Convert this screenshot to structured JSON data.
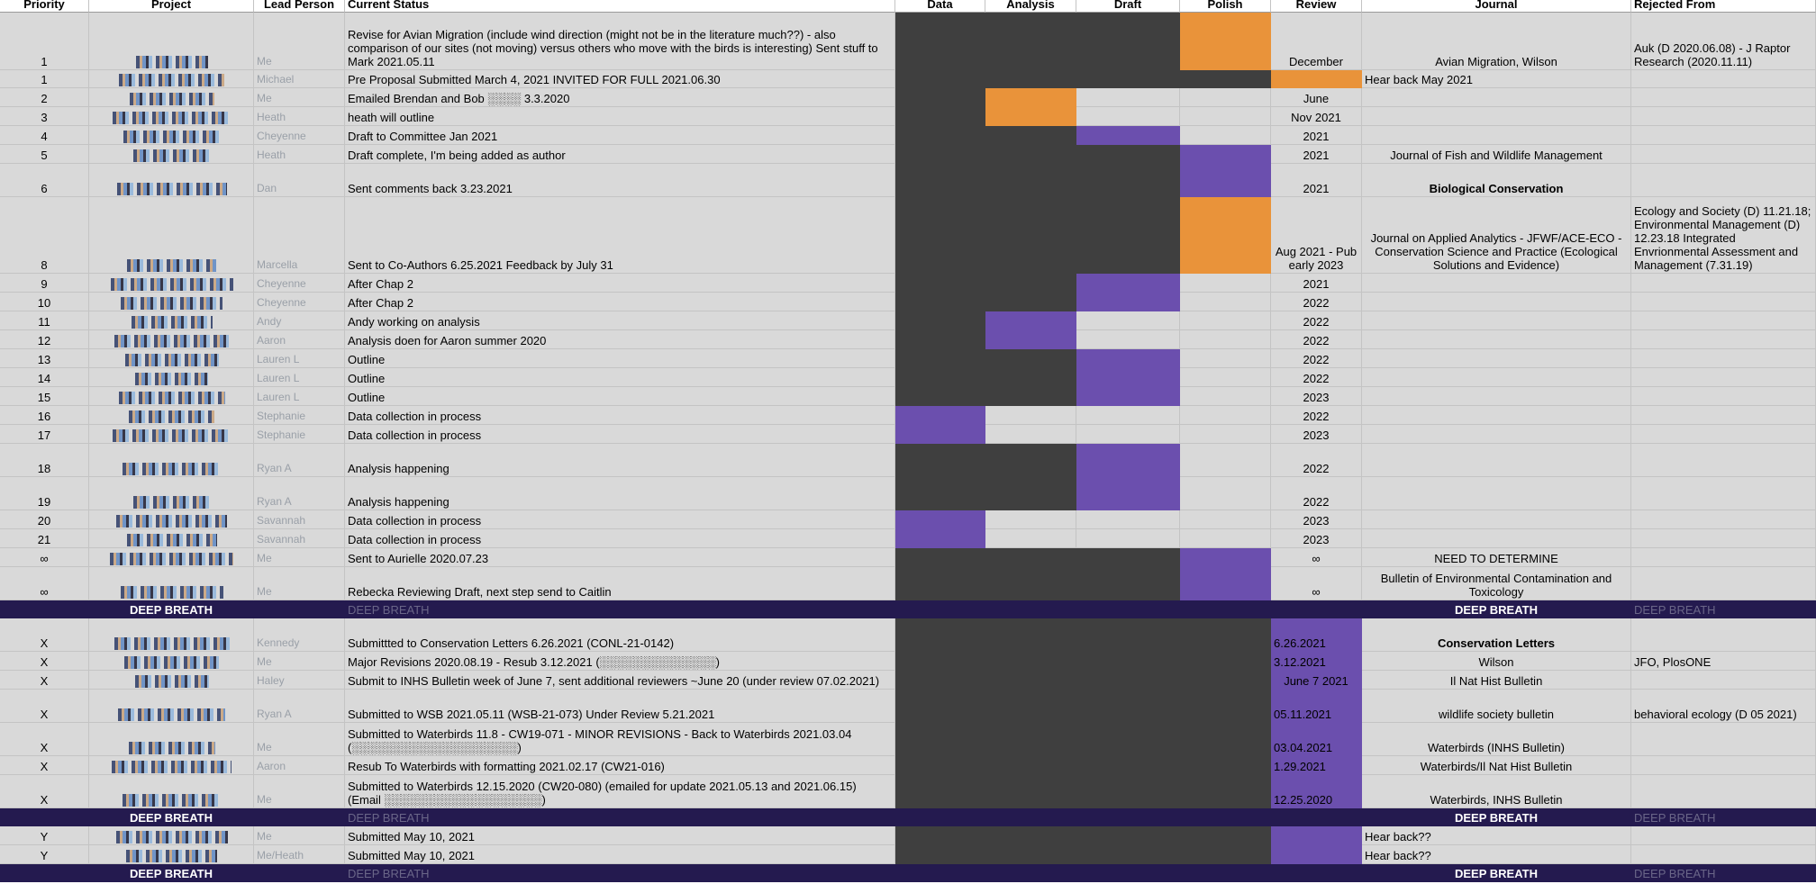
{
  "columns": {
    "priority": "Priority",
    "project": "Project",
    "lead": "Lead Person",
    "status": "Current Status",
    "data": "Data",
    "analysis": "Analysis",
    "draft": "Draft",
    "polish": "Polish",
    "review": "Review",
    "journal": "Journal",
    "rejected": "Rejected From"
  },
  "colors": {
    "complete": "#3f3f3f",
    "current_orange": "#e9933a",
    "current_purple": "#6b4fae",
    "band": "#241a4f",
    "cell": "#d9d9d9"
  },
  "band_label": "DEEP BREATH",
  "rows": [
    {
      "type": "row",
      "h": 64,
      "priority": "1",
      "lead": "Me",
      "status": "Revise for Avian Migration (include wind direction (might not be in the literature much??) - also comparison of our sites (not moving) versus others who move with the birds is interesting) Sent stuff to Mark 2021.05.11",
      "stages": [
        "dark",
        "dark",
        "dark",
        "orange"
      ],
      "review": "December",
      "review_style": "",
      "journal": "Avian Migration, Wilson",
      "journal_bold": false,
      "journal_align": "center",
      "rejected": "Auk (D 2020.06.08) - J Raptor Research (2020.11.11)"
    },
    {
      "type": "row",
      "h": 20,
      "priority": "1",
      "lead": "Michael",
      "status": "Pre Proposal Submitted March 4, 2021 INVITED FOR FULL 2021.06.30",
      "stages": [
        "dark",
        "dark",
        "dark",
        "dark"
      ],
      "review": "",
      "review_style": "orange",
      "journal": "Hear back May 2021",
      "journal_bold": false,
      "journal_align": "left",
      "rejected": ""
    },
    {
      "type": "row",
      "h": 21,
      "priority": "2",
      "lead": "Me",
      "status": "Emailed Brendan and Bob ░░░░ 3.3.2020",
      "stages": [
        "dark",
        "orange",
        "light",
        "light"
      ],
      "review": "June",
      "review_style": "",
      "journal": "",
      "journal_bold": false,
      "journal_align": "center",
      "rejected": ""
    },
    {
      "type": "row",
      "h": 21,
      "priority": "3",
      "lead": "Heath",
      "status": "heath will outline",
      "stages": [
        "dark",
        "orange",
        "light",
        "light"
      ],
      "review": "Nov 2021",
      "review_style": "",
      "journal": "",
      "journal_bold": false,
      "journal_align": "center",
      "rejected": ""
    },
    {
      "type": "row",
      "h": 21,
      "priority": "4",
      "lead": "Cheyenne",
      "status": "Draft to Committee Jan 2021",
      "stages": [
        "dark",
        "dark",
        "purple",
        "light"
      ],
      "review": "2021",
      "review_style": "",
      "journal": "",
      "journal_bold": false,
      "journal_align": "center",
      "rejected": ""
    },
    {
      "type": "row",
      "h": 21,
      "priority": "5",
      "lead": "Heath",
      "status": "Draft complete, I'm being added as author",
      "stages": [
        "dark",
        "dark",
        "dark",
        "purple"
      ],
      "review": "2021",
      "review_style": "",
      "journal": "Journal of Fish and Wildlife Management",
      "journal_bold": false,
      "journal_align": "center",
      "rejected": ""
    },
    {
      "type": "row",
      "h": 37,
      "priority": "6",
      "lead": "Dan",
      "status": "Sent comments back 3.23.2021",
      "stages": [
        "dark",
        "dark",
        "dark",
        "purple"
      ],
      "review": "2021",
      "review_style": "",
      "journal": "Biological Conservation",
      "journal_bold": true,
      "journal_align": "center",
      "rejected": ""
    },
    {
      "type": "row",
      "h": 85,
      "priority": "8",
      "lead": "Marcella",
      "status": "Sent to Co-Authors 6.25.2021 Feedback by July 31",
      "stages": [
        "dark",
        "dark",
        "dark",
        "orange"
      ],
      "review": "Aug 2021 - Pub early 2023",
      "review_style": "",
      "journal": "Journal on Applied Analytics  - JFWF/ACE-ECO - Conservation Science and Practice (Ecological Solutions and Evidence)",
      "journal_bold": false,
      "journal_align": "center",
      "rejected": "Ecology and Society (D) 11.21.18; Environmental Management (D) 12.23.18 Integrated Envrionmental Assessment and Management (7.31.19)"
    },
    {
      "type": "row",
      "h": 21,
      "priority": "9",
      "lead": "Cheyenne",
      "status": "After Chap 2",
      "stages": [
        "dark",
        "dark",
        "purple",
        "light"
      ],
      "review": "2021",
      "review_style": "",
      "journal": "",
      "journal_bold": false,
      "journal_align": "center",
      "rejected": ""
    },
    {
      "type": "row",
      "h": 21,
      "priority": "10",
      "lead": "Cheyenne",
      "status": "After Chap 2",
      "stages": [
        "dark",
        "dark",
        "purple",
        "light"
      ],
      "review": "2022",
      "review_style": "",
      "journal": "",
      "journal_bold": false,
      "journal_align": "center",
      "rejected": ""
    },
    {
      "type": "row",
      "h": 21,
      "priority": "11",
      "lead": "Andy",
      "status": "Andy working on analysis",
      "stages": [
        "dark",
        "purple",
        "light",
        "light"
      ],
      "review": "2022",
      "review_style": "",
      "journal": "",
      "journal_bold": false,
      "journal_align": "center",
      "rejected": ""
    },
    {
      "type": "row",
      "h": 21,
      "priority": "12",
      "lead": "Aaron",
      "status": "Analysis doen for Aaron summer 2020",
      "stages": [
        "dark",
        "purple",
        "light",
        "light"
      ],
      "review": "2022",
      "review_style": "",
      "journal": "",
      "journal_bold": false,
      "journal_align": "center",
      "rejected": ""
    },
    {
      "type": "row",
      "h": 21,
      "priority": "13",
      "lead": "Lauren L",
      "status": "Outline",
      "stages": [
        "dark",
        "dark",
        "purple",
        "light"
      ],
      "review": "2022",
      "review_style": "",
      "journal": "",
      "journal_bold": false,
      "journal_align": "center",
      "rejected": ""
    },
    {
      "type": "row",
      "h": 21,
      "priority": "14",
      "lead": "Lauren L",
      "status": "Outline",
      "stages": [
        "dark",
        "dark",
        "purple",
        "light"
      ],
      "review": "2022",
      "review_style": "",
      "journal": "",
      "journal_bold": false,
      "journal_align": "center",
      "rejected": ""
    },
    {
      "type": "row",
      "h": 21,
      "priority": "15",
      "lead": "Lauren L",
      "status": "Outline",
      "stages": [
        "dark",
        "dark",
        "purple",
        "light"
      ],
      "review": "2023",
      "review_style": "",
      "journal": "",
      "journal_bold": false,
      "journal_align": "center",
      "rejected": ""
    },
    {
      "type": "row",
      "h": 21,
      "priority": "16",
      "lead": "Stephanie",
      "status": "Data collection in process",
      "stages": [
        "purple",
        "light",
        "light",
        "light"
      ],
      "review": "2022",
      "review_style": "",
      "journal": "",
      "journal_bold": false,
      "journal_align": "center",
      "rejected": ""
    },
    {
      "type": "row",
      "h": 21,
      "priority": "17",
      "lead": "Stephanie",
      "status": "Data collection in process",
      "stages": [
        "purple",
        "light",
        "light",
        "light"
      ],
      "review": "2023",
      "review_style": "",
      "journal": "",
      "journal_bold": false,
      "journal_align": "center",
      "rejected": ""
    },
    {
      "type": "row",
      "h": 37,
      "priority": "18",
      "lead": "Ryan A",
      "status": "Analysis happening",
      "stages": [
        "dark",
        "dark",
        "purple",
        "light"
      ],
      "review": "2022",
      "review_style": "",
      "journal": "",
      "journal_bold": false,
      "journal_align": "center",
      "rejected": ""
    },
    {
      "type": "row",
      "h": 37,
      "priority": "19",
      "lead": "Ryan A",
      "status": "Analysis happening",
      "stages": [
        "dark",
        "dark",
        "purple",
        "light"
      ],
      "review": "2022",
      "review_style": "",
      "journal": "",
      "journal_bold": false,
      "journal_align": "center",
      "rejected": ""
    },
    {
      "type": "row",
      "h": 21,
      "priority": "20",
      "lead": "Savannah",
      "status": "Data collection in process",
      "stages": [
        "purple",
        "light",
        "light",
        "light"
      ],
      "review": "2023",
      "review_style": "",
      "journal": "",
      "journal_bold": false,
      "journal_align": "center",
      "rejected": ""
    },
    {
      "type": "row",
      "h": 21,
      "priority": "21",
      "lead": "Savannah",
      "status": "Data collection in process",
      "stages": [
        "purple",
        "light",
        "light",
        "light"
      ],
      "review": "2023",
      "review_style": "",
      "journal": "",
      "journal_bold": false,
      "journal_align": "center",
      "rejected": ""
    },
    {
      "type": "row",
      "h": 21,
      "priority": "∞",
      "lead": "Me",
      "status": "Sent to Aurielle 2020.07.23",
      "stages": [
        "dark",
        "dark",
        "dark",
        "purple"
      ],
      "review": "∞",
      "review_style": "",
      "journal": "NEED TO DETERMINE",
      "journal_bold": false,
      "journal_align": "center",
      "rejected": ""
    },
    {
      "type": "row",
      "h": 37,
      "priority": "∞",
      "lead": "Me",
      "status": "Rebecka Reviewing Draft, next step send to Caitlin",
      "stages": [
        "dark",
        "dark",
        "dark",
        "purple"
      ],
      "review": "∞",
      "review_style": "",
      "journal": "Bulletin of Environmental Contamination and Toxicology",
      "journal_bold": false,
      "journal_align": "center",
      "rejected": ""
    },
    {
      "type": "band",
      "h": 20
    },
    {
      "type": "row",
      "h": 37,
      "priority": "X",
      "lead": "Kennedy",
      "status": "Submittted to Conservation Letters 6.26.2021 (CONL-21-0142)",
      "stages": [
        "dark",
        "dark",
        "dark",
        "dark"
      ],
      "review": "6.26.2021",
      "review_style": "purple-left",
      "journal": "Conservation Letters",
      "journal_bold": true,
      "journal_align": "center",
      "rejected": ""
    },
    {
      "type": "row",
      "h": 21,
      "priority": "X",
      "lead": "Me",
      "status": "Major Revisions 2020.08.19 - Resub 3.12.2021 (░░░░░░░░░░░░░░)",
      "stages": [
        "dark",
        "dark",
        "dark",
        "dark"
      ],
      "review": "3.12.2021",
      "review_style": "purple-left",
      "journal": "Wilson",
      "journal_bold": false,
      "journal_align": "center",
      "rejected": "JFO, PlosONE"
    },
    {
      "type": "row",
      "h": 21,
      "priority": "X",
      "lead": "Haley",
      "status": "Submit to INHS Bulletin week of June 7, sent additional reviewers ~June 20 (under review 07.02.2021)",
      "stages": [
        "dark",
        "dark",
        "dark",
        "dark"
      ],
      "review": "June 7 2021",
      "review_style": "purple",
      "journal": "Il Nat Hist Bulletin",
      "journal_bold": false,
      "journal_align": "center",
      "rejected": ""
    },
    {
      "type": "row",
      "h": 37,
      "priority": "X",
      "lead": "Ryan A",
      "status": "Submitted to WSB 2021.05.11 (WSB-21-073) Under Review 5.21.2021",
      "stages": [
        "dark",
        "dark",
        "dark",
        "dark"
      ],
      "review": "05.11.2021",
      "review_style": "purple-left",
      "journal": "wildlife society bulletin",
      "journal_bold": false,
      "journal_align": "center",
      "rejected": "behavioral ecology (D 05 2021)"
    },
    {
      "type": "row",
      "h": 37,
      "priority": "X",
      "lead": "Me",
      "status": "Submitted to Waterbirds 11.8 - CW19-071 - MINOR REVISIONS - Back to Waterbirds 2021.03.04 (░░░░░░░░░░░░░░░░░░░░)",
      "stages": [
        "dark",
        "dark",
        "dark",
        "dark"
      ],
      "review": "03.04.2021",
      "review_style": "purple-left",
      "journal": "Waterbirds (INHS Bulletin)",
      "journal_bold": false,
      "journal_align": "center",
      "rejected": ""
    },
    {
      "type": "row",
      "h": 21,
      "priority": "X",
      "lead": "Aaron",
      "status": "Resub To Waterbirds with formatting 2021.02.17 (CW21-016)",
      "stages": [
        "dark",
        "dark",
        "dark",
        "dark"
      ],
      "review": "1.29.2021",
      "review_style": "purple-left",
      "journal": "Waterbirds/Il Nat Hist Bulletin",
      "journal_bold": false,
      "journal_align": "center",
      "rejected": ""
    },
    {
      "type": "row",
      "h": 37,
      "priority": "X",
      "lead": "Me",
      "status": "Submitted to Waterbirds 12.15.2020 (CW20-080) (emailed for update 2021.05.13 and 2021.06.15) (Email ░░░░░░░░░░░░░░░░░░░)",
      "stages": [
        "dark",
        "dark",
        "dark",
        "dark"
      ],
      "review": "12.25.2020",
      "review_style": "purple-left",
      "journal": "Waterbirds, INHS Bulletin",
      "journal_bold": false,
      "journal_align": "center",
      "rejected": ""
    },
    {
      "type": "band",
      "h": 20
    },
    {
      "type": "row",
      "h": 21,
      "priority": "Y",
      "lead": "Me",
      "status": "Submitted May 10, 2021",
      "stages": [
        "dark",
        "dark",
        "dark",
        "dark"
      ],
      "review": "",
      "review_style": "purple",
      "journal": "Hear back??",
      "journal_bold": false,
      "journal_align": "left",
      "rejected": ""
    },
    {
      "type": "row",
      "h": 21,
      "priority": "Y",
      "lead": "Me/Heath",
      "status": "Submitted May 10, 2021",
      "stages": [
        "dark",
        "dark",
        "dark",
        "dark"
      ],
      "review": "",
      "review_style": "purple",
      "journal": "Hear back??",
      "journal_bold": false,
      "journal_align": "left",
      "rejected": ""
    },
    {
      "type": "band",
      "h": 20
    }
  ]
}
